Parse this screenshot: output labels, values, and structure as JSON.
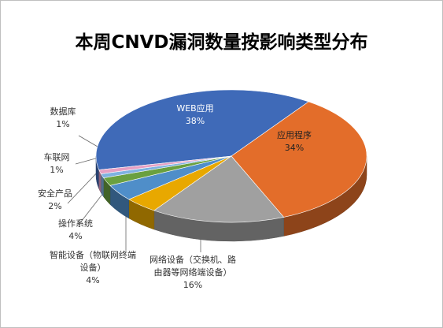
{
  "chart_data": {
    "type": "pie3d",
    "title": "本周CNVD漏洞数量按影响类型分布",
    "categories": [
      "WEB应用",
      "应用程序",
      "网络设备（交换机、路由器等网络端设备）",
      "智能设备（物联网终端设备）",
      "操作系统",
      "安全产品",
      "车联网",
      "数据库"
    ],
    "values": [
      38,
      34,
      16,
      4,
      4,
      2,
      1,
      1
    ],
    "value_labels": [
      "38%",
      "34%",
      "16%",
      "4%",
      "4%",
      "2%",
      "1%",
      "1%"
    ],
    "colors": [
      "#3f6ab8",
      "#e36d2a",
      "#a0a0a0",
      "#e8a800",
      "#4f8ec9",
      "#6aa040",
      "#7fb2e0",
      "#e6a0c4"
    ]
  }
}
